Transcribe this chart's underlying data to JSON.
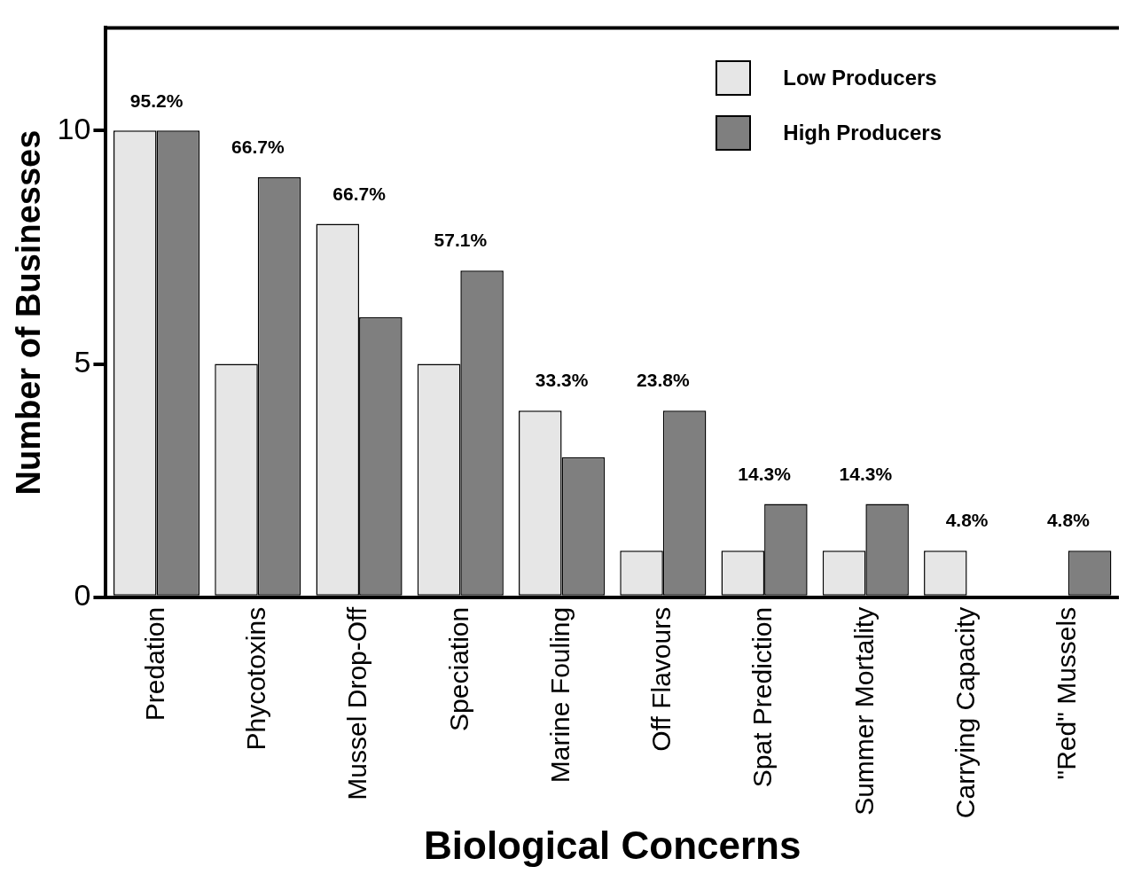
{
  "chart_data": {
    "type": "bar",
    "xlabel": "Biological Concerns",
    "ylabel": "Number of Businesses",
    "categories": [
      "Predation",
      "Phycotoxins",
      "Mussel Drop-Off",
      "Speciation",
      "Marine Fouling",
      "Off Flavours",
      "Spat Prediction",
      "Summer Mortality",
      "Carrying Capacity",
      "\"Red\" Mussels"
    ],
    "series": [
      {
        "name": "Low Producers",
        "color": "#e6e6e6",
        "values": [
          10,
          5,
          8,
          5,
          4,
          1,
          1,
          1,
          1,
          0
        ]
      },
      {
        "name": "High Producers",
        "color": "#7f7f7f",
        "values": [
          10,
          9,
          6,
          7,
          3,
          4,
          2,
          2,
          0,
          1
        ]
      }
    ],
    "annotations": [
      {
        "text": "95.2%",
        "x": "Predation",
        "y": 10
      },
      {
        "text": "66.7%",
        "x": "Phycotoxins",
        "y": 9
      },
      {
        "text": "66.7%",
        "x": "Mussel Drop-Off",
        "y": 8
      },
      {
        "text": "57.1%",
        "x": "Speciation",
        "y": 7
      },
      {
        "text": "33.3%",
        "x": "Marine Fouling",
        "y": 4
      },
      {
        "text": "23.8%",
        "x": "Off Flavours",
        "y": 4
      },
      {
        "text": "14.3%",
        "x": "Spat Prediction",
        "y": 2
      },
      {
        "text": "14.3%",
        "x": "Summer Mortality",
        "y": 2
      },
      {
        "text": "4.8%",
        "x": "Carrying Capacity",
        "y": 1
      },
      {
        "text": "4.8%",
        "x": "\"Red\" Mussels",
        "y": 1
      }
    ],
    "ylim": [
      0,
      12.2
    ],
    "yticks": [
      0,
      5,
      10
    ],
    "grid": false,
    "legend": "top right"
  }
}
